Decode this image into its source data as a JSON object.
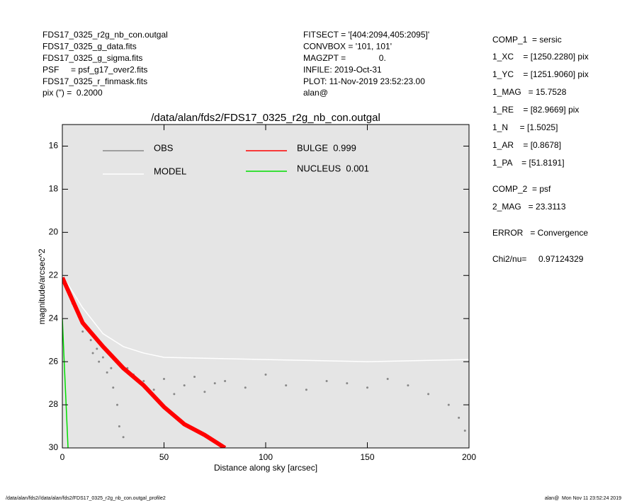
{
  "header": {
    "left": [
      "FDS17_0325_r2g_nb_con.outgal",
      "FDS17_0325_g_data.fits",
      "FDS17_0325_g_sigma.fits",
      "PSF     = psf_g17_over2.fits",
      "FDS17_0325_r_finmask.fits",
      "pix (\") =  0.2000"
    ],
    "middle": [
      "FITSECT = '[404:2094,405:2095]'",
      "CONVBOX = '101, 101'",
      "MAGZPT =              0.",
      "INFILE: 2019-Oct-31",
      "PLOT: 11-Nov-2019 23:52:23.00",
      "alan@"
    ],
    "right": [
      "COMP_1  = sersic",
      "1_XC    = [1250.2280] pix",
      "1_YC    = [1251.9060] pix",
      "1_MAG   = 15.7528",
      "1_RE    = [82.9669] pix",
      "1_N     = [1.5025]",
      "1_AR    = [0.8678]",
      "1_PA    = [51.8191]",
      "COMP_2  = psf",
      "2_MAG   = 23.3113",
      "ERROR   = Convergence",
      "Chi2/nu=     0.97124329"
    ]
  },
  "footer": {
    "left": "/data/alan/fds2//data/alan/fds2/FDS17_0325_r2g_nb_con.outgal_profile2",
    "right": "alan@  Mon Nov 11 23:52:24 2019"
  },
  "chart_data": {
    "type": "line",
    "title": "/data/alan/fds2/FDS17_0325_r2g_nb_con.outgal",
    "xlabel": "Distance along sky [arcsec]",
    "ylabel": "magnitude/arcsec^2",
    "xlim": [
      0,
      200
    ],
    "ylim": [
      30,
      15
    ],
    "xticks": [
      0,
      50,
      100,
      150,
      200
    ],
    "yticks": [
      16,
      18,
      20,
      22,
      24,
      26,
      28,
      30
    ],
    "background": "#e5e5e5",
    "series": [
      {
        "name": "OBS",
        "color": "#888888",
        "type": "scatter",
        "x": [
          5,
          8,
          10,
          12,
          14,
          15,
          17,
          18,
          20,
          22,
          24,
          25,
          27,
          28,
          30,
          32,
          35,
          38,
          40,
          45,
          50,
          55,
          60,
          65,
          70,
          75,
          80,
          90,
          100,
          110,
          120,
          130,
          140,
          150,
          160,
          170,
          180,
          190,
          195,
          198
        ],
        "values": [
          23.3,
          23.9,
          24.6,
          24.5,
          25.0,
          25.6,
          25.4,
          26.0,
          25.8,
          26.5,
          26.3,
          27.2,
          28.0,
          29.0,
          29.5,
          26.3,
          26.6,
          27.0,
          26.9,
          27.3,
          26.8,
          27.5,
          27.1,
          26.7,
          27.4,
          27.0,
          26.9,
          27.2,
          26.6,
          27.1,
          27.3,
          26.9,
          27.0,
          27.2,
          26.8,
          27.1,
          27.5,
          28.0,
          28.6,
          29.2
        ]
      },
      {
        "name": "MODEL",
        "color": "#ffffff",
        "x": [
          0,
          10,
          20,
          30,
          40,
          50,
          100,
          150,
          200
        ],
        "values": [
          22.0,
          23.5,
          24.7,
          25.3,
          25.6,
          25.8,
          25.9,
          26.0,
          25.9
        ]
      },
      {
        "name": "BULGE  0.999",
        "color": "#ff0000",
        "x": [
          0,
          10,
          20,
          30,
          40,
          50,
          60,
          70,
          80
        ],
        "values": [
          22.1,
          24.2,
          25.3,
          26.3,
          27.1,
          28.1,
          28.9,
          29.4,
          30
        ]
      },
      {
        "name": "NUCLEUS  0.001",
        "color": "#00dd00",
        "x": [
          0,
          1,
          2,
          2.8
        ],
        "values": [
          24,
          26.2,
          28.3,
          30
        ]
      }
    ]
  }
}
